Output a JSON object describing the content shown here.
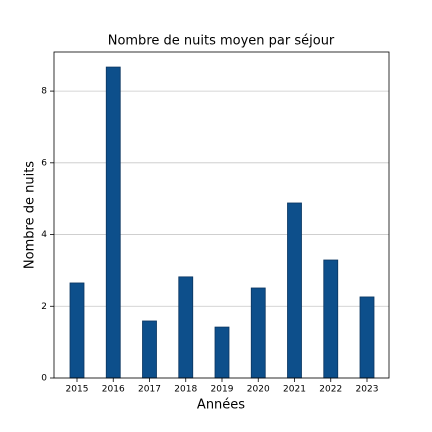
{
  "chart_data": {
    "type": "bar",
    "title": "Nombre de nuits moyen par séjour",
    "xlabel": "Années",
    "ylabel": "Nombre de nuits",
    "categories": [
      "2015",
      "2016",
      "2017",
      "2018",
      "2019",
      "2020",
      "2021",
      "2022",
      "2023"
    ],
    "values": [
      2.65,
      8.67,
      1.59,
      2.82,
      1.42,
      2.51,
      4.88,
      3.29,
      2.26
    ],
    "color": "#0d4f8b",
    "ylim": [
      0,
      9.09
    ],
    "yticks": [
      0,
      2,
      4,
      6,
      8
    ],
    "grid": true
  }
}
